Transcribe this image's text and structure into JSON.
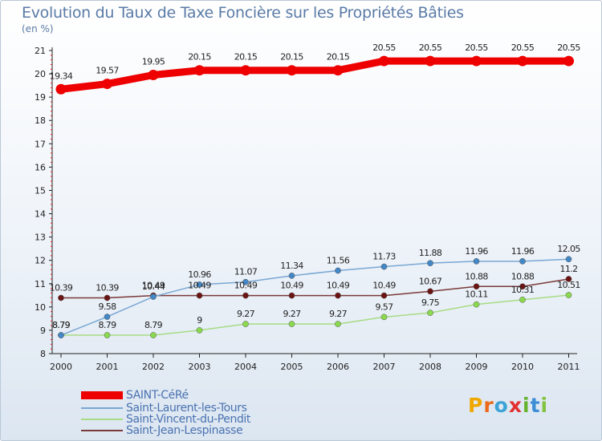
{
  "chart_data": {
    "type": "line",
    "title": "Evolution du Taux de Taxe Foncière sur les Propriétés Bâties",
    "unit_label": "(en %)",
    "xlabel": "",
    "ylabel": "",
    "ylim": [
      8,
      21
    ],
    "y_ticks": [
      "8",
      "9",
      "10",
      "11",
      "12",
      "13",
      "14",
      "15",
      "16",
      "17",
      "18",
      "19",
      "20",
      "21"
    ],
    "categories": [
      "2000",
      "2001",
      "2002",
      "2003",
      "2004",
      "2005",
      "2006",
      "2007",
      "2008",
      "2009",
      "2010",
      "2011"
    ],
    "series": [
      {
        "name": "SAINT-CéRé",
        "color": "#ee0000",
        "marker": "#ee0000",
        "values": [
          19.34,
          19.57,
          19.95,
          20.15,
          20.15,
          20.15,
          20.15,
          20.55,
          20.55,
          20.55,
          20.55,
          20.55
        ],
        "labels": [
          "19.34",
          "19.57",
          "19.95",
          "20.15",
          "20.15",
          "20.15",
          "20.15",
          "20.55",
          "20.55",
          "20.55",
          "20.55",
          "20.55"
        ]
      },
      {
        "name": "Saint-Laurent-les-Tours",
        "color": "#79a7d4",
        "marker": "#4387c6",
        "values": [
          8.79,
          9.58,
          10.44,
          10.96,
          11.07,
          11.34,
          11.56,
          11.73,
          11.88,
          11.96,
          11.96,
          12.05
        ],
        "labels": [
          "8.79",
          "9.58",
          "10.44",
          "10.96",
          "11.07",
          "11.34",
          "11.56",
          "11.73",
          "11.88",
          "11.96",
          "11.96",
          "12.05"
        ]
      },
      {
        "name": "Saint-Vincent-du-Pendit",
        "color": "#a7dc84",
        "marker": "#8ad94e",
        "values": [
          8.79,
          8.79,
          8.79,
          9.0,
          9.27,
          9.27,
          9.27,
          9.57,
          9.75,
          10.11,
          10.31,
          10.51
        ],
        "labels": [
          "8.79",
          "8.79",
          "8.79",
          "9",
          "9.27",
          "9.27",
          "9.27",
          "9.57",
          "9.75",
          "10.11",
          "10.31",
          "10.51"
        ]
      },
      {
        "name": "Saint-Jean-Lespinasse",
        "color": "#7a3a3a",
        "marker": "#6b1414",
        "values": [
          10.39,
          10.39,
          10.49,
          10.49,
          10.49,
          10.49,
          10.49,
          10.49,
          10.67,
          10.88,
          10.88,
          11.2
        ],
        "labels": [
          "10.39",
          "10.39",
          "10.49",
          "10.49",
          "10.49",
          "10.49",
          "10.49",
          "10.49",
          "10.67",
          "10.88",
          "10.88",
          "11.2"
        ]
      }
    ],
    "legend_position": "bottom-left"
  },
  "branding": {
    "logo_letters": [
      "P",
      "r",
      "o",
      "x",
      "i",
      "t",
      "i"
    ],
    "logo_colors": [
      "#f0a800",
      "#ea6a1c",
      "#3da3d6",
      "#e33131",
      "#69b22d",
      "#3d8ed6",
      "#82c341"
    ]
  }
}
